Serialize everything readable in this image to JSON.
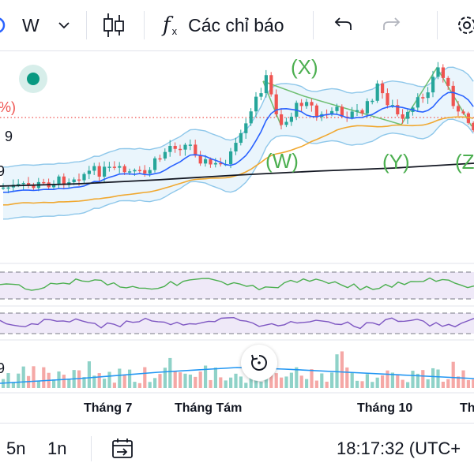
{
  "toolbar": {
    "interval_label": "W",
    "indicators_label": "Các chỉ báo"
  },
  "chart": {
    "left_fragments": [
      "%)",
      "9",
      "9",
      "9"
    ],
    "wave_labels": [
      "(X)",
      "(W)",
      "(Y)",
      "(Z"
    ],
    "time_axis": [
      "Tháng 7",
      "Tháng Tám",
      "Tháng 10",
      "Th"
    ],
    "colors": {
      "up": "#26a69a",
      "down": "#ef5350",
      "bb_band": "#8ec7ea",
      "ma_fast": "#2962ff",
      "ma_slow": "#f0a830",
      "ma_long": "#131722",
      "wave_label": "#4caf50",
      "rsi_line": "#4caf50",
      "stoch_line": "#7e57c2"
    }
  },
  "bottombar": {
    "range_5y": "5n",
    "range_1y": "1n",
    "clock": "18:17:32 (UTC+"
  }
}
